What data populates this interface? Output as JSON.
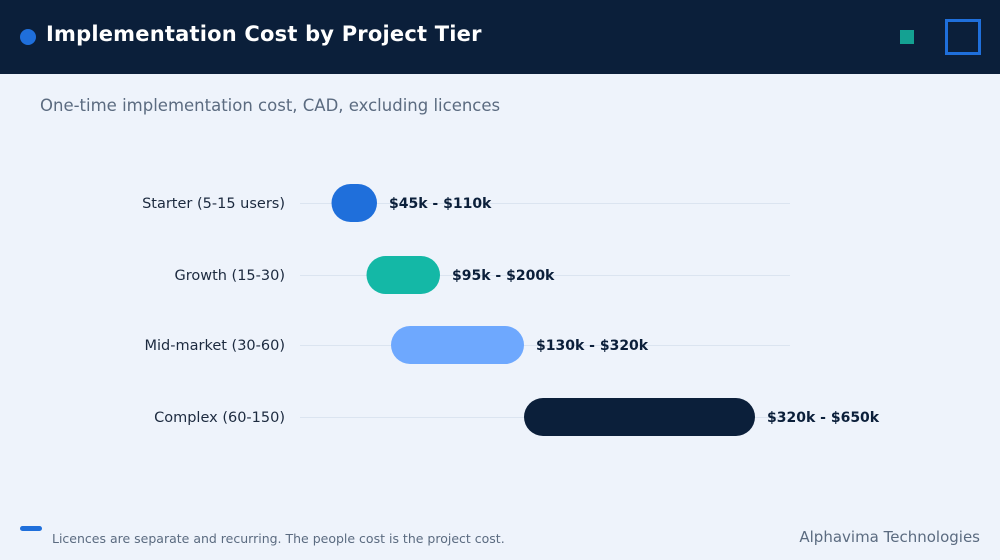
{
  "header": {
    "title": "Implementation Cost by Project Tier"
  },
  "subtitle": "One-time implementation cost, CAD, excluding licences",
  "footer": {
    "note": "Licences are separate and recurring. The people cost is the project cost.",
    "brand": "Alphavima Technologies"
  },
  "colors": {
    "header_bg": "#0b1f3a",
    "accent_blue": "#1f6fdb",
    "accent_teal": "#14b8a6",
    "light_blue": "#6ea8fe",
    "navy": "#0b1f3a",
    "page_bg": "#eef3fb"
  },
  "chart_data": {
    "type": "bar",
    "orientation": "horizontal-range",
    "unit": "k CAD",
    "categories": [
      "Starter (5-15 users)",
      "Growth (15-30)",
      "Mid-market (30-60)",
      "Complex (60-150)"
    ],
    "ranges": [
      {
        "low": 45,
        "high": 110,
        "label": "$45k - $110k",
        "color": "#1f6fdb"
      },
      {
        "low": 95,
        "high": 200,
        "label": "$95k - $200k",
        "color": "#14b8a6"
      },
      {
        "low": 130,
        "high": 320,
        "label": "$130k - $320k",
        "color": "#6ea8fe"
      },
      {
        "low": 320,
        "high": 650,
        "label": "$320k - $650k",
        "color": "#0b1f3a"
      }
    ],
    "xlim": [
      0,
      700
    ],
    "grid": true,
    "legend": "none"
  }
}
